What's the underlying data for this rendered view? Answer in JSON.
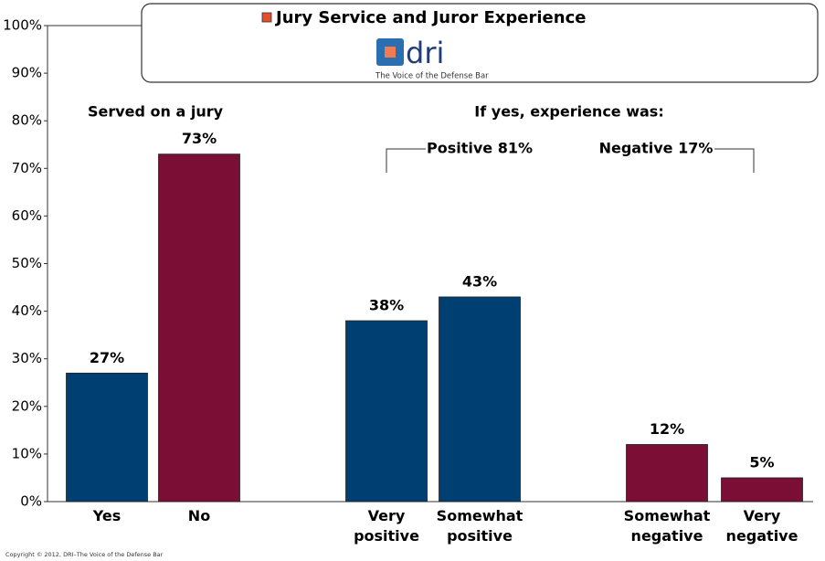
{
  "chart_data": {
    "type": "bar",
    "title": "Jury Service and Juror Experience",
    "logo": {
      "name": "dri",
      "tagline": "The Voice of the Defense Bar"
    },
    "categories": [
      "Yes",
      "No",
      "Very positive",
      "Somewhat positive",
      "Somewhat negative",
      "Very negative"
    ],
    "values": [
      27,
      73,
      38,
      43,
      12,
      5
    ],
    "value_labels": [
      "27%",
      "73%",
      "38%",
      "43%",
      "12%",
      "5%"
    ],
    "colors": [
      "#003f72",
      "#7a0e35",
      "#003f72",
      "#003f72",
      "#7a0e35",
      "#7a0e35"
    ],
    "annotations": [
      "Served on a jury",
      "If yes, experience was:",
      "Positive 81%",
      "Negative 17%"
    ],
    "ylim": [
      0,
      100
    ],
    "yticks": [
      {
        "value": 0,
        "label": "0%"
      },
      {
        "value": 10,
        "label": "10%"
      },
      {
        "value": 20,
        "label": "20%"
      },
      {
        "value": 30,
        "label": "30%"
      },
      {
        "value": 40,
        "label": "40%"
      },
      {
        "value": 50,
        "label": "50%"
      },
      {
        "value": 60,
        "label": "60%"
      },
      {
        "value": 70,
        "label": "70%"
      },
      {
        "value": 80,
        "label": "80%"
      },
      {
        "value": 90,
        "label": "90%"
      },
      {
        "value": 100,
        "label": "100%"
      }
    ],
    "footnote": "Copyright © 2012, DRI–The Voice of the Defense Bar"
  }
}
